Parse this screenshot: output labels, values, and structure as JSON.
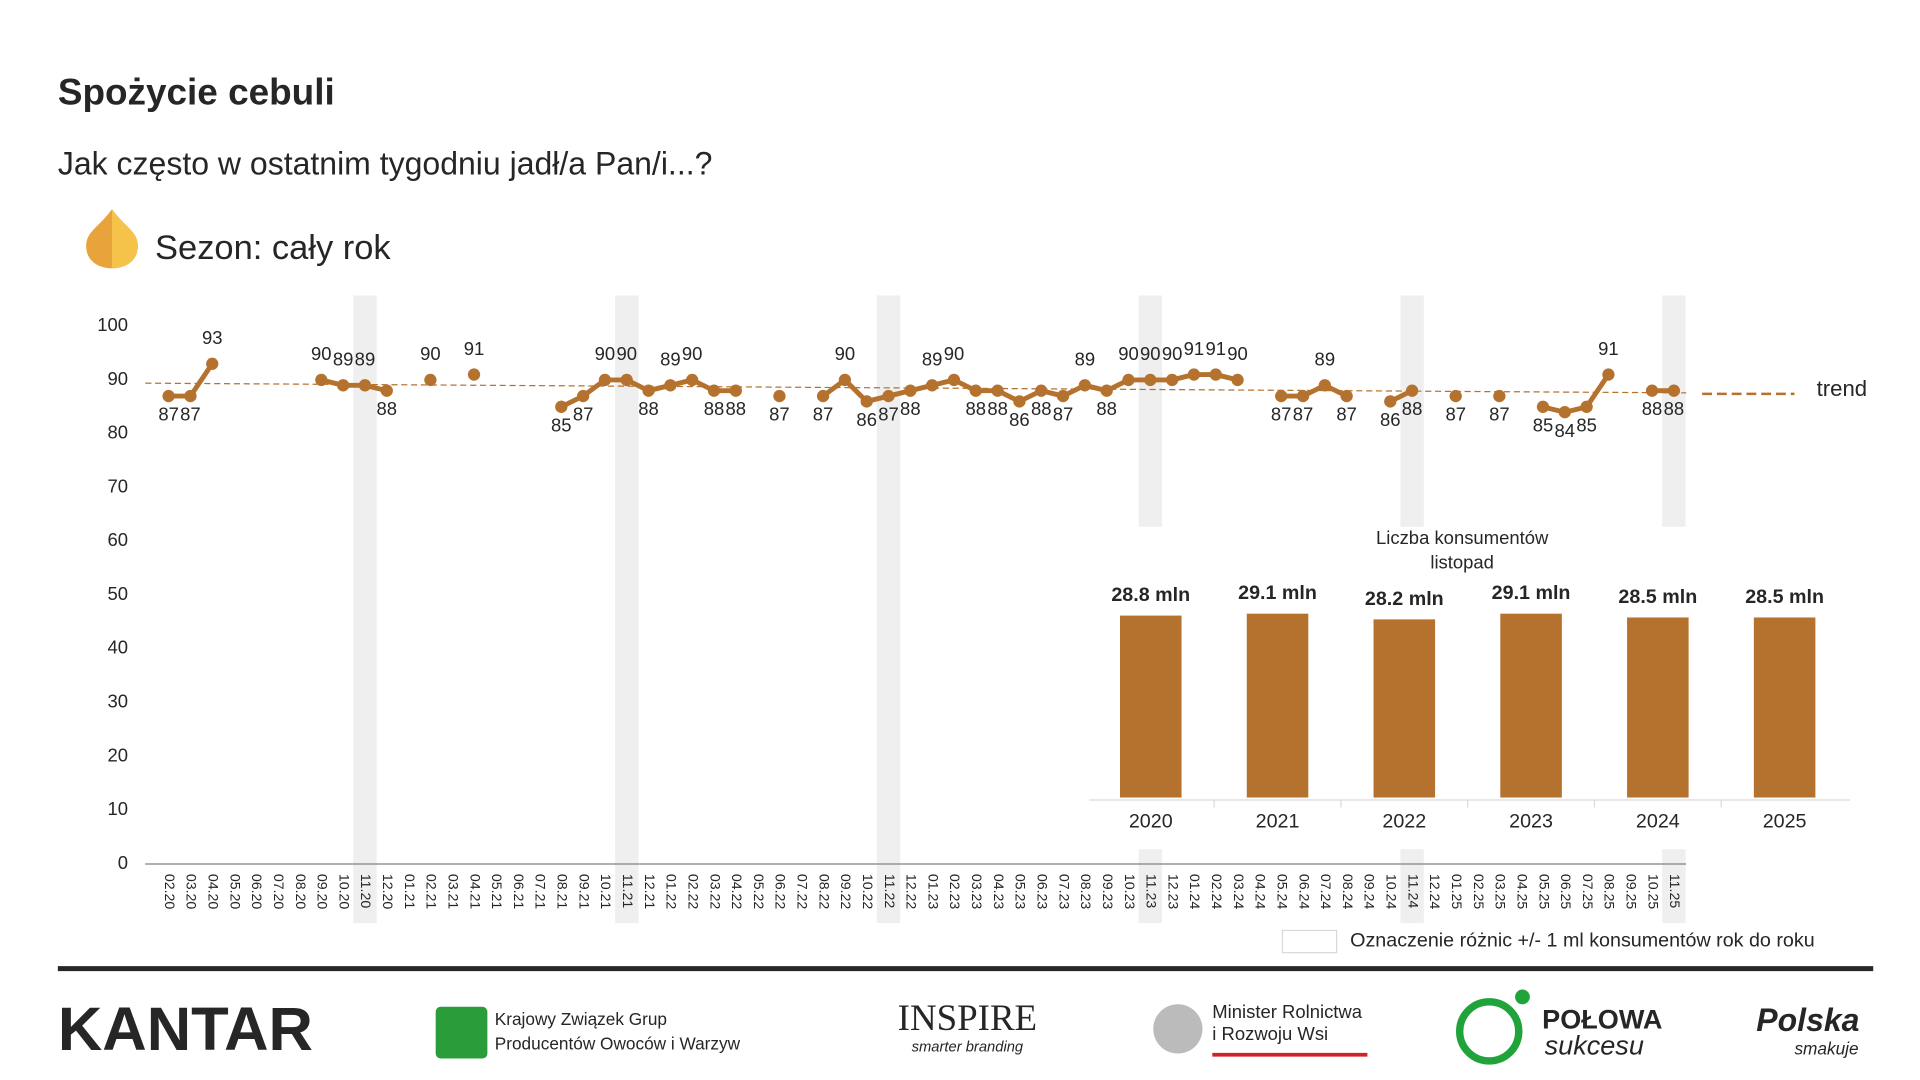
{
  "header": {
    "title": "Spożycie cebuli",
    "subtitle": "Jak często w ostatnim tygodniu jadł/a Pan/i...?",
    "season": "Sezon: cały rok"
  },
  "chart_data": [
    {
      "type": "line",
      "categories": [
        "02.20",
        "03.20",
        "04.20",
        "05.20",
        "06.20",
        "07.20",
        "08.20",
        "09.20",
        "10.20",
        "11.20",
        "12.20",
        "01.21",
        "02.21",
        "03.21",
        "04.21",
        "05.21",
        "06.21",
        "07.21",
        "08.21",
        "09.21",
        "10.21",
        "11.21",
        "12.21",
        "01.22",
        "02.22",
        "03.22",
        "04.22",
        "05.22",
        "06.22",
        "07.22",
        "08.22",
        "09.22",
        "10.22",
        "11.22",
        "12.22",
        "01.23",
        "02.23",
        "03.23",
        "04.23",
        "05.23",
        "06.23",
        "07.23",
        "08.23",
        "09.23",
        "10.23",
        "11.23",
        "12.23",
        "01.24",
        "02.24",
        "03.24",
        "04.24",
        "05.24",
        "06.24",
        "07.24",
        "08.24",
        "09.24",
        "10.24",
        "11.24",
        "12.24",
        "01.25",
        "02.25",
        "03.25",
        "04.25",
        "05.25",
        "06.25",
        "07.25",
        "08.25",
        "09.25",
        "10.25",
        "11.25"
      ],
      "series": [
        {
          "name": "Spożycie",
          "color": "#b5722f",
          "values": [
            87,
            87,
            93,
            null,
            null,
            null,
            null,
            90,
            89,
            89,
            88,
            null,
            90,
            null,
            91,
            null,
            null,
            null,
            85,
            87,
            90,
            90,
            88,
            89,
            90,
            88,
            88,
            null,
            87,
            null,
            87,
            90,
            86,
            87,
            88,
            89,
            90,
            88,
            88,
            86,
            88,
            87,
            89,
            88,
            90,
            90,
            90,
            91,
            91,
            90,
            null,
            87,
            87,
            89,
            87,
            null,
            86,
            88,
            null,
            87,
            null,
            87,
            null,
            85,
            84,
            85,
            91,
            null,
            88,
            88
          ]
        }
      ],
      "trend": {
        "name": "trend",
        "color": "#b5722f",
        "values": [
          89.4,
          87.6
        ]
      },
      "highlight": {
        "categories": [
          "11.20",
          "11.21",
          "11.22",
          "11.23",
          "11.24",
          "11.25"
        ],
        "label": "Oznaczenie różnic +/- 1 ml konsumentów rok do roku"
      },
      "ylim": [
        0,
        100
      ],
      "yticks": [
        0,
        10,
        20,
        30,
        40,
        50,
        60,
        70,
        80,
        90,
        100
      ]
    },
    {
      "type": "bar",
      "title": [
        "Liczba konsumentów",
        "listopad"
      ],
      "categories": [
        "2020",
        "2021",
        "2022",
        "2023",
        "2024",
        "2025"
      ],
      "values": [
        28.8,
        29.1,
        28.2,
        29.1,
        28.5,
        28.5
      ],
      "value_labels": [
        "28.8 mln",
        "29.1 mln",
        "28.2 mln",
        "29.1 mln",
        "28.5 mln",
        "28.5 mln"
      ],
      "color": "#b5722f",
      "ylim": [
        0,
        30
      ]
    }
  ],
  "footer": {
    "logos": [
      "KANTAR",
      "Krajowy Związek Grup",
      "Producentów Owoców i Warzyw",
      "INSPIRE",
      "smarter branding",
      "Minister Rolnictwa",
      "i Rozwoju Wsi",
      "POŁOWA",
      "sukcesu",
      "Polska",
      "smakuje"
    ]
  }
}
